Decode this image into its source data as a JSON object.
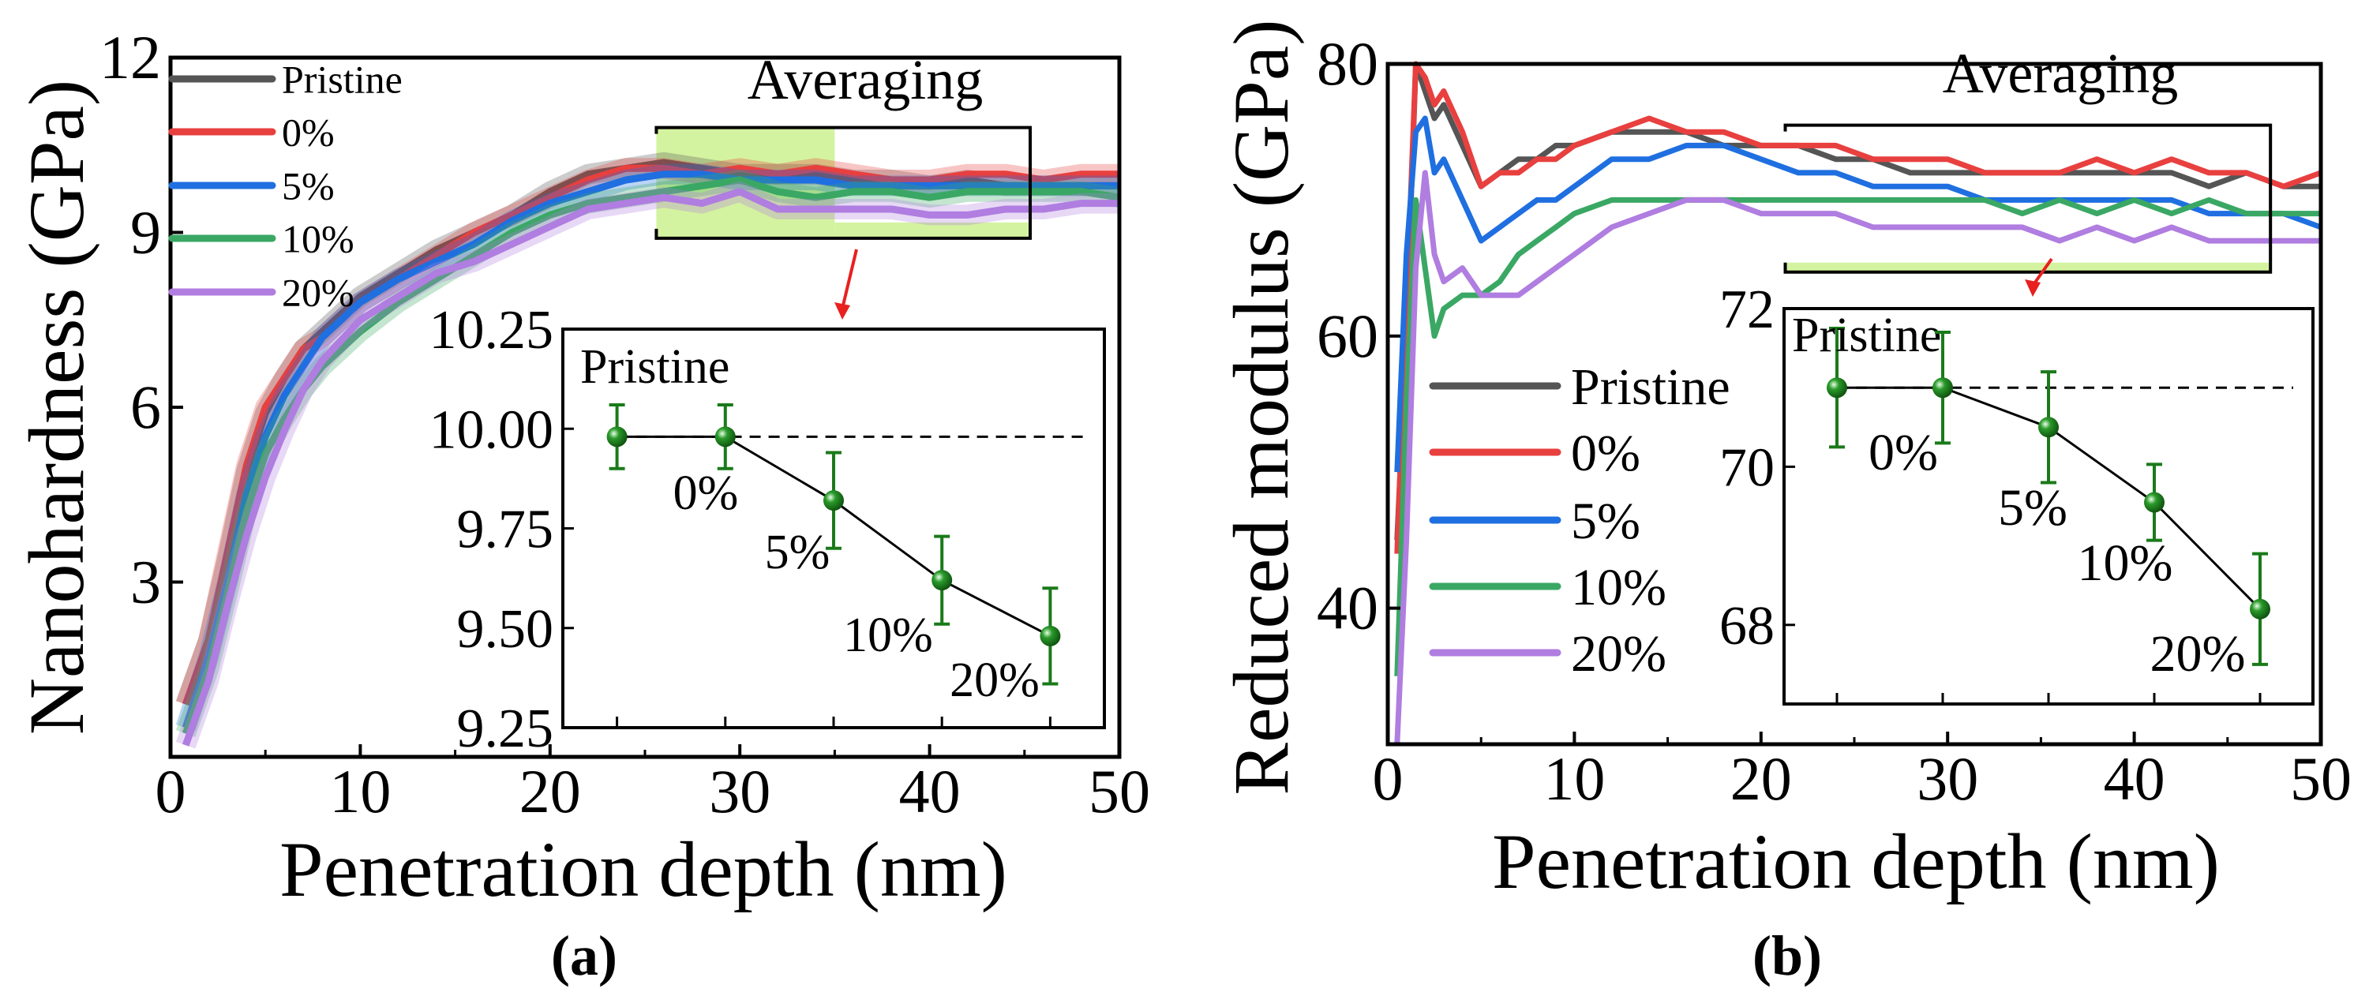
{
  "chart_data": [
    {
      "type": "line",
      "panel_label": "(a)",
      "xlabel": "Penetration depth (nm)",
      "ylabel": "Nanohardness (GPa)",
      "xlim": [
        0,
        50
      ],
      "ylim": [
        0,
        12
      ],
      "xticks": [
        0,
        10,
        20,
        30,
        40,
        50
      ],
      "yticks": [
        3,
        6,
        9,
        12
      ],
      "grid": false,
      "legend_position": "top-left",
      "x": [
        0.8,
        2,
        3,
        4,
        5,
        6,
        7,
        8,
        10,
        12,
        14,
        16,
        18,
        20,
        22,
        24,
        26,
        28,
        30,
        32,
        34,
        36,
        38,
        40,
        42,
        44,
        46,
        48,
        50
      ],
      "series": [
        {
          "name": "Pristine",
          "color": "#555555",
          "values": [
            0.9,
            2.0,
            3.4,
            4.9,
            5.9,
            6.5,
            7.0,
            7.3,
            7.9,
            8.3,
            8.7,
            9.0,
            9.3,
            9.7,
            10.0,
            10.1,
            10.2,
            10.1,
            10.0,
            10.0,
            10.0,
            9.9,
            9.9,
            9.8,
            9.9,
            9.8,
            9.8,
            9.8,
            9.8
          ]
        },
        {
          "name": "0%",
          "color": "#e8403f",
          "values": [
            0.9,
            2.0,
            3.5,
            5.0,
            6.0,
            6.5,
            7.0,
            7.2,
            7.8,
            8.2,
            8.6,
            9.0,
            9.3,
            9.6,
            9.9,
            10.1,
            10.1,
            10.0,
            10.1,
            10.0,
            10.1,
            10.0,
            9.9,
            9.9,
            10.0,
            10.0,
            9.9,
            10.0,
            10.0
          ]
        },
        {
          "name": "5%",
          "color": "#1f6fe0",
          "values": [
            0.5,
            1.7,
            3.0,
            4.5,
            5.5,
            6.2,
            6.7,
            7.2,
            7.8,
            8.2,
            8.5,
            8.8,
            9.2,
            9.5,
            9.7,
            9.9,
            10.0,
            10.0,
            9.9,
            9.9,
            9.9,
            9.8,
            9.8,
            9.8,
            9.8,
            9.8,
            9.8,
            9.8,
            9.8
          ]
        },
        {
          "name": "10%",
          "color": "#3aa864",
          "values": [
            0.4,
            1.5,
            2.8,
            4.2,
            5.2,
            5.8,
            6.3,
            6.7,
            7.3,
            7.8,
            8.2,
            8.6,
            9.0,
            9.3,
            9.5,
            9.6,
            9.7,
            9.8,
            9.9,
            9.7,
            9.6,
            9.7,
            9.7,
            9.6,
            9.7,
            9.7,
            9.7,
            9.7,
            9.6
          ]
        },
        {
          "name": "20%",
          "color": "#b07de0",
          "values": [
            0.2,
            1.3,
            2.6,
            3.8,
            4.8,
            5.6,
            6.3,
            6.8,
            7.5,
            7.9,
            8.3,
            8.5,
            8.8,
            9.1,
            9.4,
            9.5,
            9.6,
            9.5,
            9.7,
            9.4,
            9.4,
            9.4,
            9.4,
            9.3,
            9.3,
            9.4,
            9.4,
            9.5,
            9.5
          ]
        }
      ],
      "averaging": {
        "label": "Averaging",
        "x_range": [
          25.6,
          45.3
        ],
        "y_range": [
          8.9,
          10.8
        ],
        "highlight_split": 35
      },
      "inset": {
        "type": "scatter-errorbar",
        "categories": [
          "Pristine",
          "0%",
          "5%",
          "10%",
          "20%"
        ],
        "values": [
          9.98,
          9.98,
          9.82,
          9.62,
          9.48
        ],
        "errors": [
          0.08,
          0.08,
          0.12,
          0.11,
          0.12
        ],
        "reference_line": 9.98,
        "ylim": [
          9.25,
          10.25
        ],
        "yticks": [
          "9.25",
          "9.50",
          "9.75",
          "10.00",
          "10.25"
        ],
        "point_color": "#1a7a1a"
      }
    },
    {
      "type": "line",
      "panel_label": "(b)",
      "xlabel": "Penetration depth (nm)",
      "ylabel": "Reduced modulus (GPa)",
      "xlim": [
        0,
        50
      ],
      "ylim": [
        30,
        80
      ],
      "xticks": [
        0,
        10,
        20,
        30,
        40,
        50
      ],
      "yticks": [
        40,
        60,
        80
      ],
      "grid": false,
      "legend_position": "middle-left",
      "x": [
        0.5,
        1,
        1.5,
        2,
        2.5,
        3,
        4,
        5,
        6,
        7,
        8,
        9,
        10,
        12,
        14,
        16,
        18,
        20,
        22,
        24,
        26,
        28,
        30,
        32,
        34,
        36,
        38,
        40,
        42,
        44,
        46,
        48,
        50
      ],
      "series": [
        {
          "name": "Pristine",
          "color": "#555555",
          "values": [
            45,
            60,
            80,
            78,
            76,
            77,
            74,
            71,
            72,
            73,
            73,
            74,
            74,
            75,
            75,
            75,
            74,
            74,
            74,
            73,
            73,
            72,
            72,
            72,
            72,
            72,
            72,
            72,
            72,
            71,
            72,
            71,
            71
          ]
        },
        {
          "name": "0%",
          "color": "#e8403f",
          "values": [
            44,
            62,
            80,
            79,
            77,
            78,
            75,
            71,
            72,
            72,
            73,
            73,
            74,
            75,
            76,
            75,
            75,
            74,
            74,
            74,
            73,
            73,
            73,
            72,
            72,
            72,
            73,
            72,
            73,
            72,
            72,
            71,
            72
          ]
        },
        {
          "name": "5%",
          "color": "#1f6fe0",
          "values": [
            50,
            66,
            75,
            76,
            72,
            73,
            70,
            67,
            68,
            69,
            70,
            70,
            71,
            73,
            73,
            74,
            74,
            73,
            72,
            72,
            71,
            71,
            71,
            70,
            70,
            70,
            70,
            70,
            70,
            69,
            69,
            69,
            68
          ]
        },
        {
          "name": "10%",
          "color": "#3aa864",
          "values": [
            35,
            55,
            70,
            65,
            60,
            62,
            63,
            63,
            64,
            66,
            67,
            68,
            69,
            70,
            70,
            70,
            70,
            70,
            70,
            70,
            70,
            70,
            70,
            70,
            69,
            70,
            69,
            70,
            69,
            70,
            69,
            69,
            69
          ]
        },
        {
          "name": "20%",
          "color": "#b07de0",
          "values": [
            30,
            45,
            65,
            72,
            66,
            64,
            65,
            63,
            63,
            63,
            64,
            65,
            66,
            68,
            69,
            70,
            70,
            69,
            69,
            69,
            68,
            68,
            68,
            68,
            68,
            67,
            68,
            67,
            68,
            67,
            67,
            67,
            67
          ]
        }
      ],
      "averaging": {
        "label": "Averaging",
        "x_range": [
          21.3,
          47.3
        ],
        "y_range": [
          64.7,
          75.5
        ],
        "highlight_split": null
      },
      "inset": {
        "type": "scatter-errorbar",
        "categories": [
          "Pristine",
          "0%",
          "5%",
          "10%",
          "20%"
        ],
        "values": [
          71.0,
          71.0,
          70.5,
          69.55,
          68.2
        ],
        "errors": [
          0.75,
          0.7,
          0.7,
          0.48,
          0.7
        ],
        "reference_line": 71.0,
        "ylim": [
          67,
          72
        ],
        "yticks": [
          "68",
          "70",
          "72"
        ],
        "point_color": "#1a7a1a"
      }
    }
  ]
}
